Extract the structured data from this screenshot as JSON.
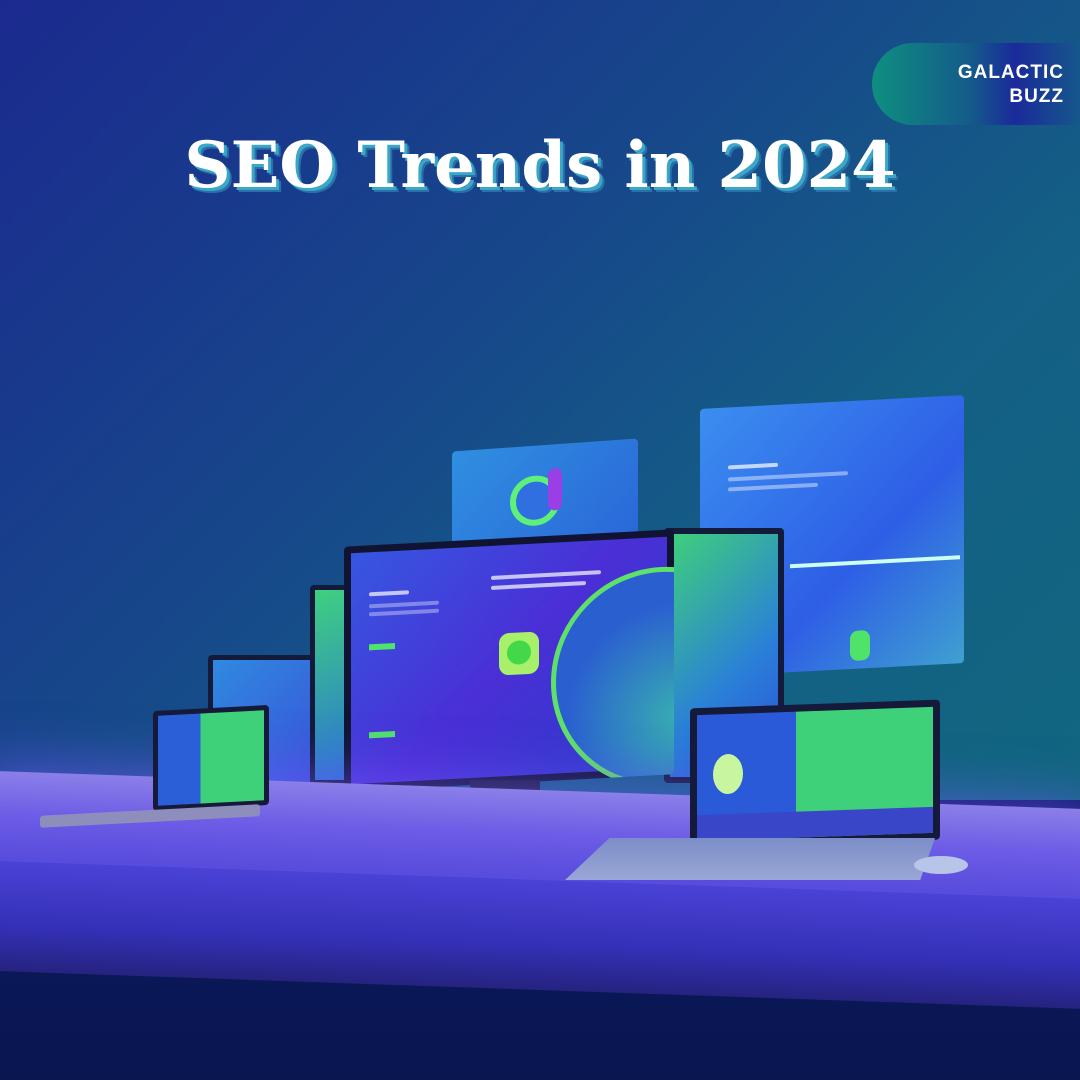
{
  "title": "SEO Trends in 2024",
  "logo": {
    "line1": "GALACTIC",
    "line2": "BUZZ"
  },
  "colors": {
    "background": "#17468a",
    "accent_green": "#4fe36a",
    "title_shadow": "#3aa7c9",
    "desk": "#6d5ce6"
  }
}
